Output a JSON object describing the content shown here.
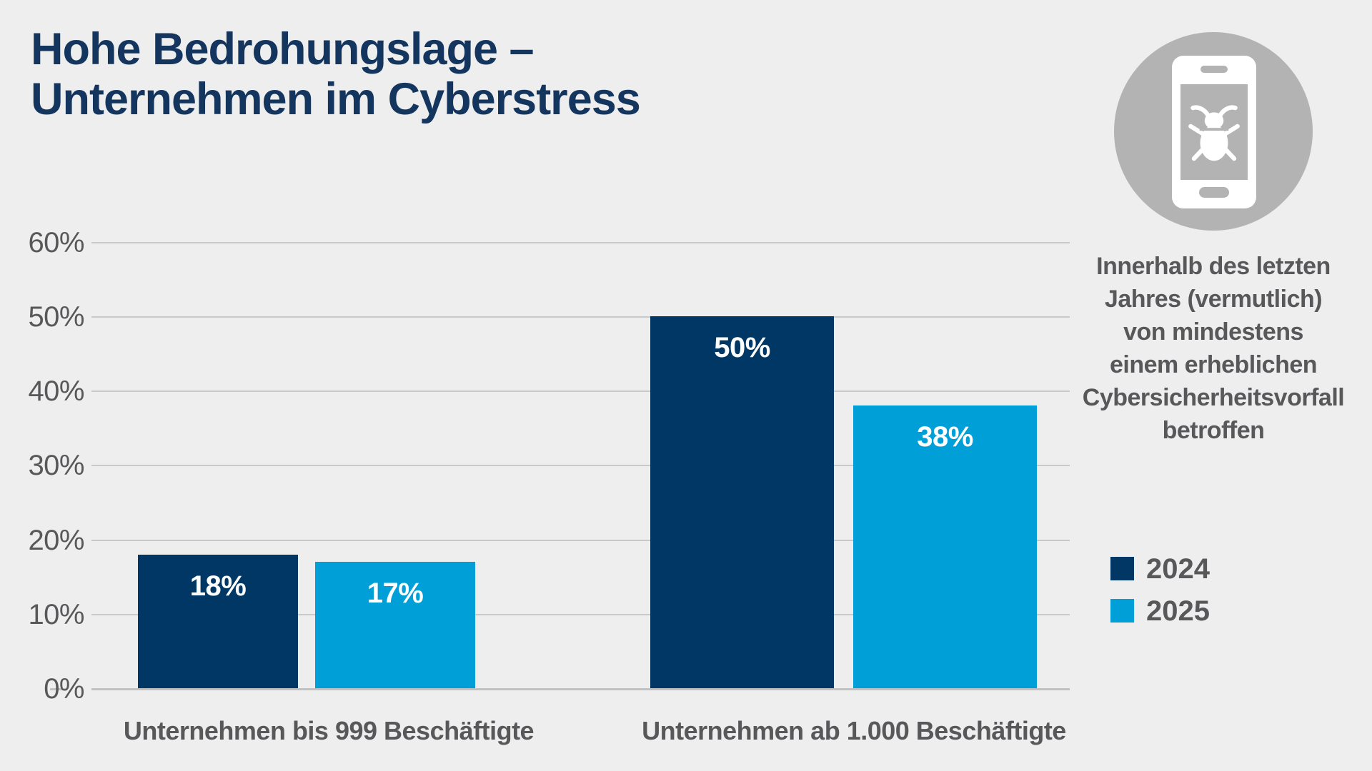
{
  "page": {
    "background": "#eeeeee"
  },
  "title": {
    "text": "Hohe Bedrohungslage –\nUnternehmen im Cyberstress",
    "color": "#14355e"
  },
  "sidebar": {
    "icon": "smartphone-bug-icon",
    "icon_circle_color": "#b3b3b3",
    "caption_lines": [
      "Innerhalb des letzten",
      "Jahres (vermutlich)",
      "von mindestens",
      "einem erheblichen",
      "Cybersicherheitsvorfall",
      "betroffen"
    ]
  },
  "legend": {
    "items": [
      {
        "label": "2024",
        "color": "#003765"
      },
      {
        "label": "2025",
        "color": "#009fd8"
      }
    ]
  },
  "chart_data": {
    "type": "bar",
    "title": "Hohe Bedrohungslage – Unternehmen im Cyberstress",
    "categories": [
      "Unternehmen bis 999 Beschäftigte",
      "Unternehmen ab 1.000 Beschäftigte"
    ],
    "series": [
      {
        "name": "2024",
        "color": "#003765",
        "values": [
          18,
          50
        ]
      },
      {
        "name": "2025",
        "color": "#009fd8",
        "values": [
          17,
          38
        ]
      }
    ],
    "value_suffix": "%",
    "yticks": [
      "60%",
      "50%",
      "40%",
      "30%",
      "20%",
      "10%",
      "0%"
    ],
    "ylim": [
      0,
      60
    ],
    "grid": true,
    "gridline_color": "#c9c9c9",
    "legend_position": "right",
    "annotation": "Innerhalb des letzten Jahres (vermutlich) von mindestens einem erheblichen Cybersicherheitsvorfall betroffen"
  }
}
